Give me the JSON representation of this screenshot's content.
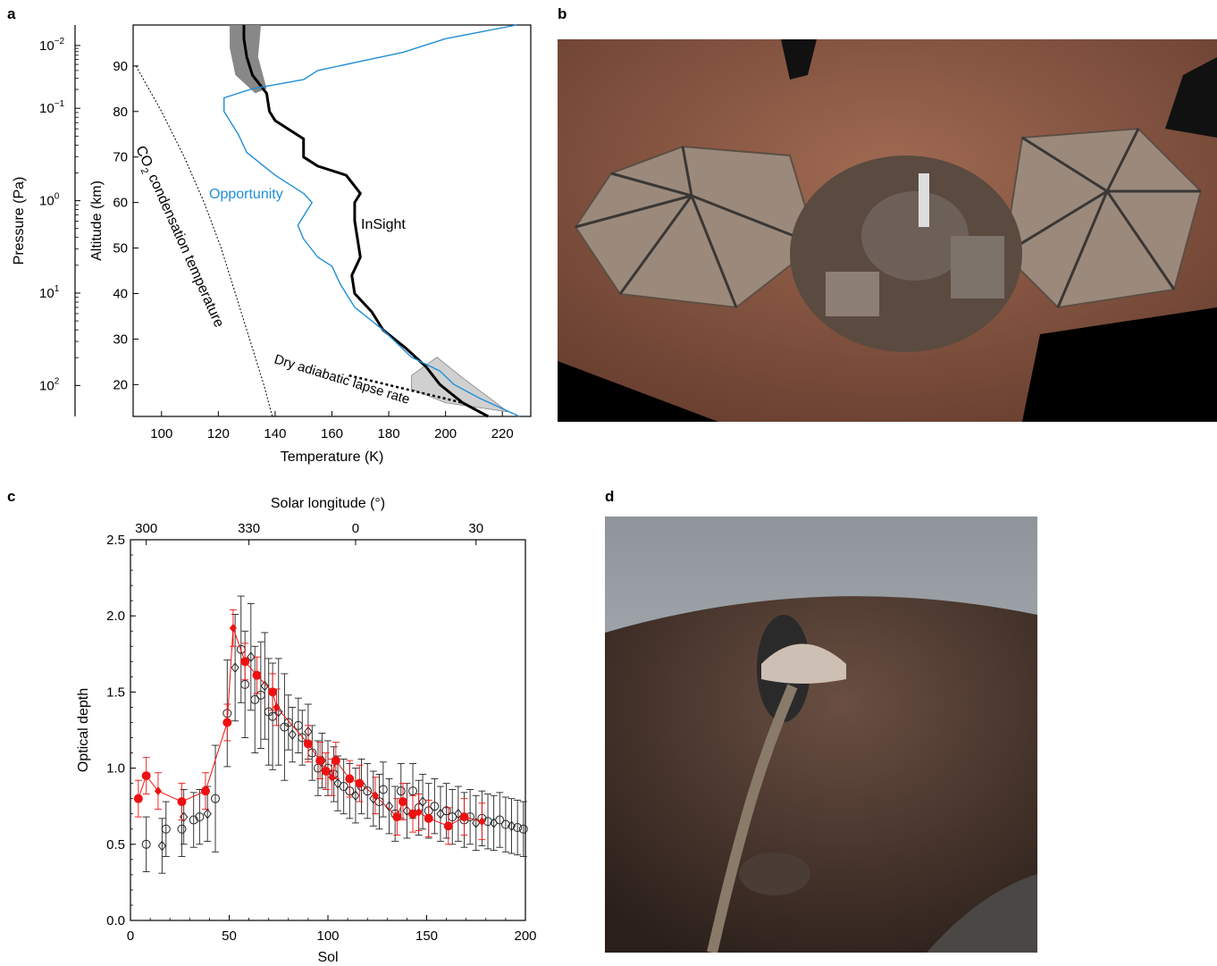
{
  "panel_letters": {
    "a": "a",
    "b": "b",
    "c": "c",
    "d": "d"
  },
  "colors": {
    "insight": "#000000",
    "opportunity": "#1f8fd6",
    "red_series": "#ee1111",
    "photo_b_bg": "#8a5a45",
    "photo_d_sky": "#c4c6c8"
  },
  "panel_a": {
    "annotations": {
      "opportunity": "Opportunity",
      "insight": "InSight",
      "co2_a": "CO",
      "co2_sub": "2",
      "co2_b": " condensation temperature",
      "dry": "Dry adiabatic lapse rate"
    }
  },
  "panel_b": {
    "description_icon": "insight-lander-selfie-image"
  },
  "panel_d": {
    "description_icon": "seismometer-dome-image"
  },
  "chart_data": [
    {
      "type": "line",
      "panel": "a",
      "xlabel": "Temperature (K)",
      "ylabel": "Altitude  (km)",
      "y2label": "Pressure (Pa)",
      "xlim": [
        90,
        230
      ],
      "ylim": [
        13,
        99
      ],
      "xticks": [
        100,
        120,
        140,
        160,
        180,
        200,
        220
      ],
      "yticks": [
        20,
        30,
        40,
        50,
        60,
        70,
        80,
        90
      ],
      "pressure_ticks": [
        {
          "base": "10",
          "exp": "2",
          "alt": 19.8
        },
        {
          "base": "10",
          "exp": "1",
          "alt": 40.1
        },
        {
          "base": "10",
          "exp": "0",
          "alt": 60.4
        },
        {
          "base": "10",
          "exp": "−1",
          "alt": 80.7
        },
        {
          "base": "10",
          "exp": "−2",
          "alt": 94.5
        }
      ],
      "series": [
        {
          "name": "InSight",
          "points": [
            [
              215,
              13
            ],
            [
              206,
              16
            ],
            [
              198,
              20
            ],
            [
              193,
              24
            ],
            [
              186,
              28
            ],
            [
              178,
              32
            ],
            [
              174,
              36
            ],
            [
              168,
              40
            ],
            [
              167,
              44
            ],
            [
              170,
              48
            ],
            [
              169,
              52
            ],
            [
              168,
              56
            ],
            [
              168,
              60
            ],
            [
              170,
              62
            ],
            [
              165,
              66
            ],
            [
              155,
              68
            ],
            [
              150,
              70
            ],
            [
              150,
              74
            ],
            [
              140,
              78
            ],
            [
              138,
              80
            ],
            [
              137,
              84
            ],
            [
              132,
              88
            ],
            [
              130,
              92
            ],
            [
              129,
              96
            ],
            [
              129,
              99
            ]
          ]
        },
        {
          "name": "Opportunity",
          "points": [
            [
              226,
              13
            ],
            [
              212,
              17
            ],
            [
              203,
              20
            ],
            [
              198,
              23
            ],
            [
              188,
              26
            ],
            [
              178,
              32
            ],
            [
              168,
              37
            ],
            [
              163,
              42
            ],
            [
              160,
              46
            ],
            [
              155,
              48
            ],
            [
              150,
              52
            ],
            [
              148,
              55
            ],
            [
              153,
              60
            ],
            [
              150,
              62
            ],
            [
              140,
              66
            ],
            [
              130,
              71
            ],
            [
              127,
              75
            ],
            [
              122,
              80
            ],
            [
              122,
              83
            ],
            [
              132,
              85
            ],
            [
              150,
              87
            ],
            [
              155,
              89
            ],
            [
              170,
              91
            ],
            [
              185,
              93
            ],
            [
              200,
              96
            ],
            [
              225,
              99
            ]
          ]
        },
        {
          "name": "CO2 condensation temperature",
          "points": [
            [
              91,
              90
            ],
            [
              100,
              80
            ],
            [
              108,
              70
            ],
            [
              115,
              60
            ],
            [
              121,
              50
            ],
            [
              126,
              40
            ],
            [
              131,
              30
            ],
            [
              136,
              20
            ],
            [
              139,
              13
            ]
          ]
        },
        {
          "name": "Dry adiabatic lapse rate",
          "points": [
            [
              166,
              22
            ],
            [
              206,
              16
            ]
          ]
        }
      ]
    },
    {
      "type": "scatter",
      "panel": "c",
      "xlabel": "Sol",
      "ylabel": "Optical depth",
      "x2label": "Solar longitude (°)",
      "xlim": [
        0,
        200
      ],
      "ylim": [
        0,
        2.5
      ],
      "xticks": [
        0,
        50,
        100,
        150,
        200
      ],
      "yticks": [
        0.0,
        0.5,
        1.0,
        1.5,
        2.0,
        2.5
      ],
      "ytick_labels": [
        "0.0",
        "0.5",
        "1.0",
        "1.5",
        "2.0",
        "2.5"
      ],
      "top_ticks": [
        {
          "label": "300",
          "sol": 8
        },
        {
          "label": "330",
          "sol": 60
        },
        {
          "label": "0",
          "sol": 114
        },
        {
          "label": "30",
          "sol": 175
        }
      ],
      "series": [
        {
          "style": "red",
          "points": [
            [
              4,
              0.8
            ],
            [
              8,
              0.95
            ],
            [
              14,
              0.85
            ],
            [
              26,
              0.78
            ],
            [
              38,
              0.85
            ],
            [
              49,
              1.3
            ],
            [
              52,
              1.92
            ],
            [
              58,
              1.7
            ],
            [
              64,
              1.61
            ],
            [
              72,
              1.5
            ],
            [
              74,
              1.4
            ],
            [
              90,
              1.16
            ],
            [
              96,
              1.05
            ],
            [
              99,
              0.98
            ],
            [
              102,
              0.94
            ],
            [
              104,
              1.05
            ],
            [
              111,
              0.93
            ],
            [
              116,
              0.9
            ],
            [
              124,
              0.82
            ],
            [
              135,
              0.68
            ],
            [
              138,
              0.78
            ],
            [
              143,
              0.7
            ],
            [
              146,
              0.71
            ],
            [
              151,
              0.67
            ],
            [
              161,
              0.62
            ],
            [
              169,
              0.68
            ],
            [
              178,
              0.65
            ]
          ]
        },
        {
          "style": "black-open",
          "points": [
            [
              8,
              0.5
            ],
            [
              16,
              0.49
            ],
            [
              18,
              0.6
            ],
            [
              26,
              0.6
            ],
            [
              27,
              0.68
            ],
            [
              32,
              0.66
            ],
            [
              35,
              0.68
            ],
            [
              39,
              0.7
            ],
            [
              43,
              0.8
            ],
            [
              49,
              1.36
            ],
            [
              53,
              1.66
            ],
            [
              56,
              1.78
            ],
            [
              58,
              1.55
            ],
            [
              61,
              1.73
            ],
            [
              63,
              1.45
            ],
            [
              66,
              1.48
            ],
            [
              68,
              1.54
            ],
            [
              70,
              1.37
            ],
            [
              72,
              1.34
            ],
            [
              75,
              1.37
            ],
            [
              78,
              1.27
            ],
            [
              80,
              1.3
            ],
            [
              82,
              1.22
            ],
            [
              85,
              1.28
            ],
            [
              87,
              1.2
            ],
            [
              90,
              1.24
            ],
            [
              92,
              1.1
            ],
            [
              95,
              1.0
            ],
            [
              97,
              1.05
            ],
            [
              100,
              1.0
            ],
            [
              103,
              0.96
            ],
            [
              105,
              0.9
            ],
            [
              108,
              0.88
            ],
            [
              111,
              0.85
            ],
            [
              114,
              0.82
            ],
            [
              117,
              0.88
            ],
            [
              120,
              0.85
            ],
            [
              123,
              0.8
            ],
            [
              126,
              0.78
            ],
            [
              128,
              0.86
            ],
            [
              131,
              0.75
            ],
            [
              134,
              0.7
            ],
            [
              137,
              0.85
            ],
            [
              140,
              0.72
            ],
            [
              143,
              0.85
            ],
            [
              146,
              0.74
            ],
            [
              148,
              0.78
            ],
            [
              151,
              0.72
            ],
            [
              154,
              0.75
            ],
            [
              157,
              0.7
            ],
            [
              160,
              0.72
            ],
            [
              163,
              0.68
            ],
            [
              166,
              0.7
            ],
            [
              169,
              0.66
            ],
            [
              172,
              0.68
            ],
            [
              175,
              0.64
            ],
            [
              178,
              0.67
            ],
            [
              181,
              0.65
            ],
            [
              184,
              0.64
            ],
            [
              187,
              0.66
            ],
            [
              190,
              0.63
            ],
            [
              193,
              0.62
            ],
            [
              196,
              0.61
            ],
            [
              199,
              0.6
            ]
          ]
        }
      ]
    }
  ]
}
